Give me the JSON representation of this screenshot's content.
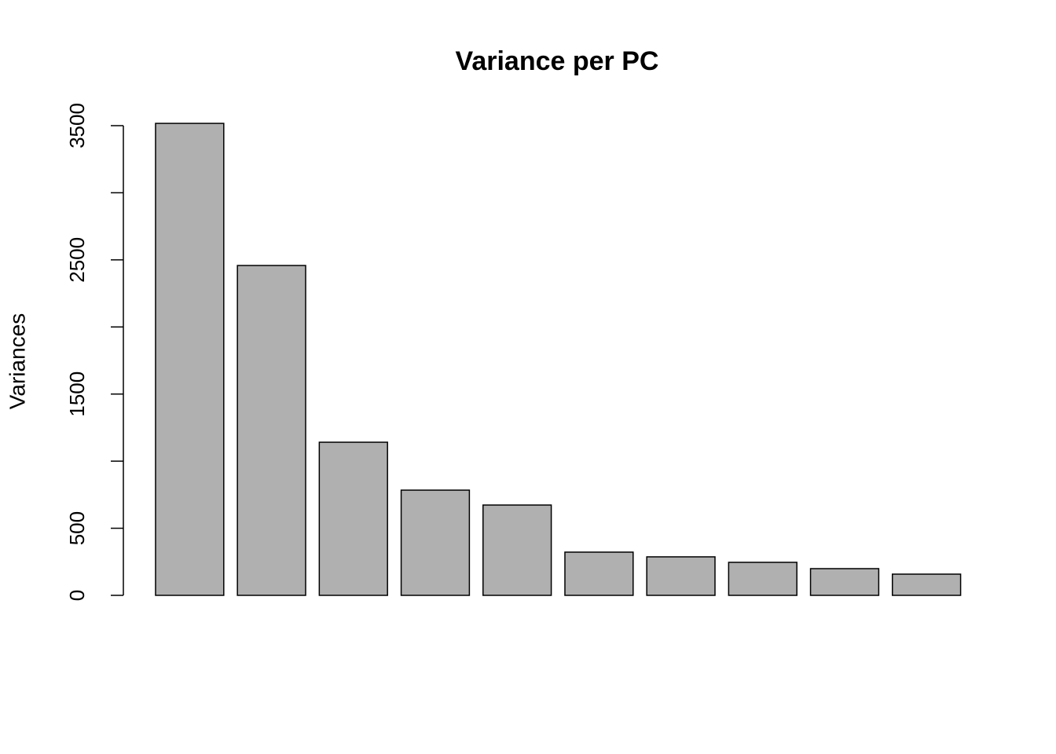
{
  "chart_data": {
    "type": "bar",
    "title": "Variance per PC",
    "y_label": "Variances",
    "categories": [
      null,
      null,
      null,
      null,
      null,
      null,
      null,
      null,
      null,
      null
    ],
    "values": [
      3517,
      2458,
      1141,
      784,
      673,
      322,
      287,
      246,
      199,
      158
    ],
    "color": "#b0b0b0",
    "ylim": [
      0,
      3650
    ],
    "yticks": [
      0,
      500,
      {
        "value": 1000,
        "label": null
      },
      1500,
      {
        "value": 2000,
        "label": null
      },
      2500,
      {
        "value": 3000,
        "label": null
      },
      3500
    ],
    "grid": false
  }
}
